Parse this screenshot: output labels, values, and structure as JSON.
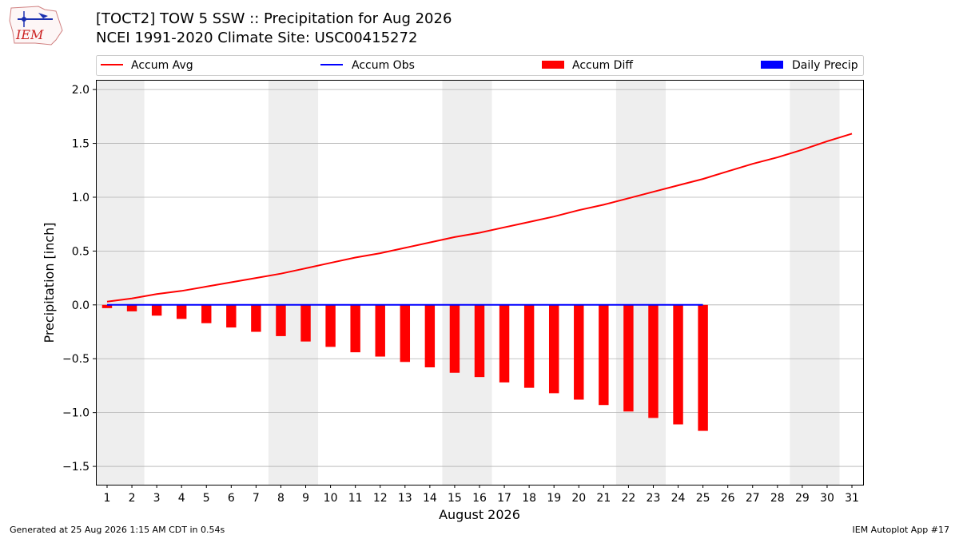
{
  "header": {
    "logo_text": "IEM",
    "title": "[TOCT2] TOW 5 SSW :: Precipitation for Aug 2026",
    "subtitle": "NCEI 1991-2020 Climate Site: USC00415272"
  },
  "footer": {
    "generated": "Generated at 25 Aug 2026 1:15 AM CDT in 0.54s",
    "app": "IEM Autoplot App #17"
  },
  "colors": {
    "accum_avg": "#ff0000",
    "accum_obs": "#0000ff",
    "accum_diff": "#ff0000",
    "daily_precip": "#0000ff",
    "weekend_shade": "#eeeeee",
    "grid": "#b0b0b0"
  },
  "chart_data": {
    "type": "bar",
    "xlabel": "August 2026",
    "ylabel": "Precipitation [inch]",
    "ylim": [
      -1.67,
      2.09
    ],
    "yticks": [
      -1.5,
      -1.0,
      -0.5,
      0.0,
      0.5,
      1.0,
      1.5,
      2.0
    ],
    "ytick_labels": [
      "−1.5",
      "−1.0",
      "−0.5",
      "0.0",
      "0.5",
      "1.0",
      "1.5",
      "2.0"
    ],
    "grid": "horizontal",
    "legend_position": "top",
    "days": [
      1,
      2,
      3,
      4,
      5,
      6,
      7,
      8,
      9,
      10,
      11,
      12,
      13,
      14,
      15,
      16,
      17,
      18,
      19,
      20,
      21,
      22,
      23,
      24,
      25,
      26,
      27,
      28,
      29,
      30,
      31
    ],
    "weekend_days": [
      1,
      2,
      8,
      9,
      15,
      16,
      22,
      23,
      29,
      30
    ],
    "series": [
      {
        "name": "Accum Avg",
        "kind": "line",
        "values": [
          0.03,
          0.06,
          0.1,
          0.13,
          0.17,
          0.21,
          0.25,
          0.29,
          0.34,
          0.39,
          0.44,
          0.48,
          0.53,
          0.58,
          0.63,
          0.67,
          0.72,
          0.77,
          0.82,
          0.88,
          0.93,
          0.99,
          1.05,
          1.11,
          1.17,
          1.24,
          1.31,
          1.37,
          1.44,
          1.52,
          1.59
        ]
      },
      {
        "name": "Accum Obs",
        "kind": "line",
        "values": [
          0,
          0,
          0,
          0,
          0,
          0,
          0,
          0,
          0,
          0,
          0,
          0,
          0,
          0,
          0,
          0,
          0,
          0,
          0,
          0,
          0,
          0,
          0,
          0,
          0
        ]
      },
      {
        "name": "Accum Diff",
        "kind": "bar",
        "values": [
          -0.03,
          -0.06,
          -0.1,
          -0.13,
          -0.17,
          -0.21,
          -0.25,
          -0.29,
          -0.34,
          -0.39,
          -0.44,
          -0.48,
          -0.53,
          -0.58,
          -0.63,
          -0.67,
          -0.72,
          -0.77,
          -0.82,
          -0.88,
          -0.93,
          -0.99,
          -1.05,
          -1.11,
          -1.17
        ]
      },
      {
        "name": "Daily Precip",
        "kind": "bar",
        "values": [
          0,
          0,
          0,
          0,
          0,
          0,
          0,
          0,
          0,
          0,
          0,
          0,
          0,
          0,
          0,
          0,
          0,
          0,
          0,
          0,
          0,
          0,
          0,
          0,
          0
        ]
      }
    ]
  }
}
